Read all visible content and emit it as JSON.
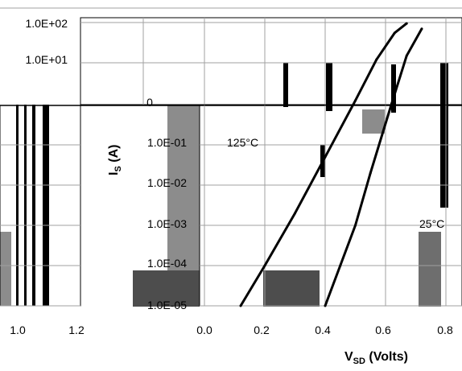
{
  "chart_data": {
    "type": "line",
    "title": "",
    "xlabel": "V",
    "xlabel_sub": "SD",
    "xlabel_suffix": " (Volts)",
    "ylabel": "I",
    "ylabel_sub": "S",
    "ylabel_suffix": " (A)",
    "y_scale": "log",
    "xlim": [
      0.0,
      0.8
    ],
    "ylim": [
      1e-05,
      100
    ],
    "grid": true,
    "x_ticks": [
      {
        "value": 0.0,
        "label": "0.0"
      },
      {
        "value": 0.2,
        "label": "0.2"
      },
      {
        "value": 0.4,
        "label": "0.4"
      },
      {
        "value": 0.6,
        "label": "0.6"
      },
      {
        "value": 0.8,
        "label": "0.8"
      }
    ],
    "y_ticks": [
      {
        "value": 100,
        "label": "1.0E+02"
      },
      {
        "value": 10,
        "label": "1.0E+01"
      },
      {
        "value": 0.1,
        "label": "1.0E-01"
      },
      {
        "value": 0.01,
        "label": "1.0E-02"
      },
      {
        "value": 0.001,
        "label": "1.0E-03"
      },
      {
        "value": 0.0001,
        "label": "1.0E-04"
      },
      {
        "value": 1e-05,
        "label": "1.0E-05"
      }
    ],
    "series": [
      {
        "name": "125°C",
        "color": "#000000",
        "x": [
          0.12,
          0.2,
          0.3,
          0.4,
          0.5,
          0.57,
          0.63,
          0.67
        ],
        "y": [
          1e-05,
          0.0001,
          0.002,
          0.05,
          1.2,
          12,
          55,
          95
        ]
      },
      {
        "name": "25°C",
        "color": "#000000",
        "x": [
          0.4,
          0.45,
          0.5,
          0.55,
          0.62,
          0.67,
          0.72
        ],
        "y": [
          1e-05,
          0.0001,
          0.001,
          0.02,
          1.0,
          15,
          70
        ]
      }
    ],
    "annotations": [
      {
        "text": "125°C",
        "x": 0.33,
        "y": 0.1
      },
      {
        "text": "25°C",
        "x": 0.74,
        "y": 0.001
      }
    ]
  },
  "fragments": {
    "zero_label": "0",
    "left_tick_1": "1.0",
    "left_tick_2": "1.2"
  },
  "colors": {
    "grid": "#a0a0a0",
    "fill_light": "#8c8c8c",
    "fill_dark": "#4d4d4d",
    "fill_mid": "#6e6e6e",
    "line": "#000000"
  }
}
